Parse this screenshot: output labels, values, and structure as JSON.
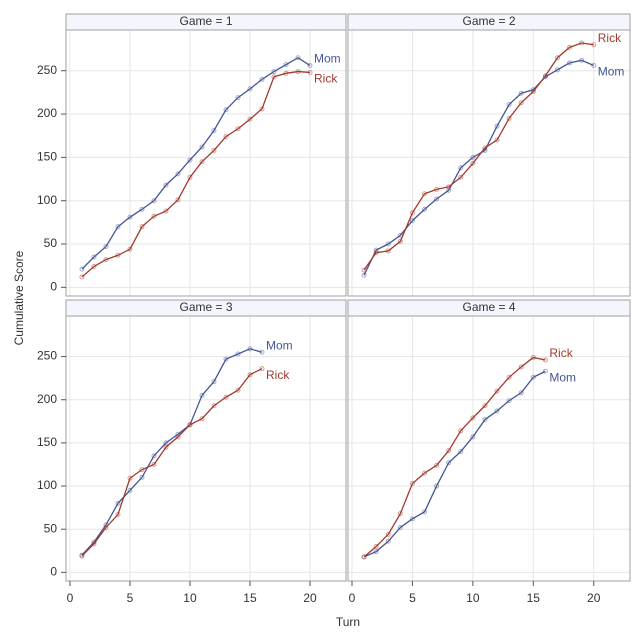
{
  "chart_data": {
    "type": "line",
    "xlabel": "Turn",
    "ylabel": "Cumulative Score",
    "xlim": [
      -0.33,
      23
    ],
    "ylim": [
      -10,
      297
    ],
    "xticks": [
      0,
      5,
      10,
      15,
      20
    ],
    "yticks": [
      0,
      50,
      100,
      150,
      200,
      250
    ],
    "grid": true,
    "panels": [
      {
        "title": "Game = 1",
        "x": [
          1,
          2,
          3,
          4,
          5,
          6,
          7,
          8,
          9,
          10,
          11,
          12,
          13,
          14,
          15,
          16,
          17,
          18,
          19,
          20
        ],
        "series": [
          {
            "name": "Mom",
            "color": "#445694",
            "values": [
              21,
              35,
              47,
              70,
              81,
              90,
              100,
              118,
              131,
              147,
              162,
              181,
              205,
              219,
              229,
              240,
              249,
              257,
              265,
              256
            ]
          },
          {
            "name": "Rick",
            "color": "#A23A2E",
            "values": [
              12,
              24,
              32,
              37,
              44,
              70,
              82,
              88,
              101,
              127,
              145,
              158,
              174,
              183,
              194,
              206,
              243,
              247,
              249,
              248
            ]
          }
        ]
      },
      {
        "title": "Game = 2",
        "x": [
          1,
          2,
          3,
          4,
          5,
          6,
          7,
          8,
          9,
          10,
          11,
          12,
          13,
          14,
          15,
          16,
          17,
          18,
          19,
          20
        ],
        "series": [
          {
            "name": "Mom",
            "color": "#445694",
            "values": [
              14,
              43,
              50,
              60,
              77,
              90,
              102,
              112,
              138,
              150,
              158,
              186,
              211,
              224,
              228,
              243,
              251,
              259,
              262,
              256
            ]
          },
          {
            "name": "Rick",
            "color": "#A23A2E",
            "values": [
              20,
              40,
              42,
              53,
              86,
              108,
              113,
              116,
              127,
              143,
              161,
              170,
              195,
              213,
              226,
              244,
              265,
              277,
              282,
              280
            ]
          }
        ]
      },
      {
        "title": "Game = 3",
        "x": [
          1,
          2,
          3,
          4,
          5,
          6,
          7,
          8,
          9,
          10,
          11,
          12,
          13,
          14,
          15,
          16
        ],
        "series": [
          {
            "name": "Mom",
            "color": "#445694",
            "values": [
              20,
              35,
              55,
              80,
              95,
              110,
              135,
              150,
              160,
              171,
              205,
              221,
              247,
              253,
              259,
              255
            ]
          },
          {
            "name": "Rick",
            "color": "#A23A2E",
            "values": [
              19,
              33,
              52,
              67,
              109,
              119,
              125,
              145,
              157,
              171,
              178,
              193,
              203,
              211,
              229,
              236
            ]
          }
        ]
      },
      {
        "title": "Game = 4",
        "x": [
          1,
          2,
          3,
          4,
          5,
          6,
          7,
          8,
          9,
          10,
          11,
          12,
          13,
          14,
          15,
          16
        ],
        "series": [
          {
            "name": "Mom",
            "color": "#445694",
            "values": [
              18,
              24,
              36,
              52,
              62,
              70,
              100,
              127,
              140,
              157,
              177,
              187,
              199,
              208,
              226,
              233
            ]
          },
          {
            "name": "Rick",
            "color": "#A23A2E",
            "values": [
              18,
              30,
              44,
              68,
              103,
              115,
              124,
              141,
              164,
              179,
              193,
              210,
              226,
              238,
              249,
              246
            ]
          }
        ]
      }
    ]
  }
}
